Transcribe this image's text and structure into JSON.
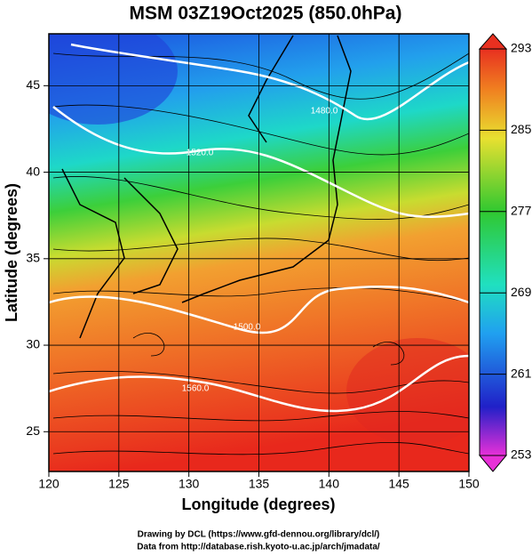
{
  "chart_data": {
    "type": "map",
    "title": "MSM 03Z19Oct2025 (850.0hPa)",
    "x_label": "Longitude (degrees)",
    "y_label": "Latitude  (degrees)",
    "xlim": [
      120,
      150
    ],
    "ylim": [
      22.7,
      48
    ],
    "xticks": [
      120,
      125,
      130,
      135,
      140,
      145,
      150
    ],
    "yticks": [
      25,
      30,
      35,
      40,
      45
    ],
    "grid": true,
    "colorbar": {
      "lim": [
        253,
        293
      ],
      "ticks": [
        253,
        261,
        269,
        277,
        285,
        293
      ]
    },
    "contour_labels": [
      "1480.0",
      "1520.0",
      "1500.0",
      "1560.0"
    ],
    "credits": [
      "Drawing by DCL (https://www.gfd-dennou.org/library/dcl/)",
      "Data from http://database.rish.kyoto-u.ac.jp/arch/jmadata/"
    ]
  }
}
